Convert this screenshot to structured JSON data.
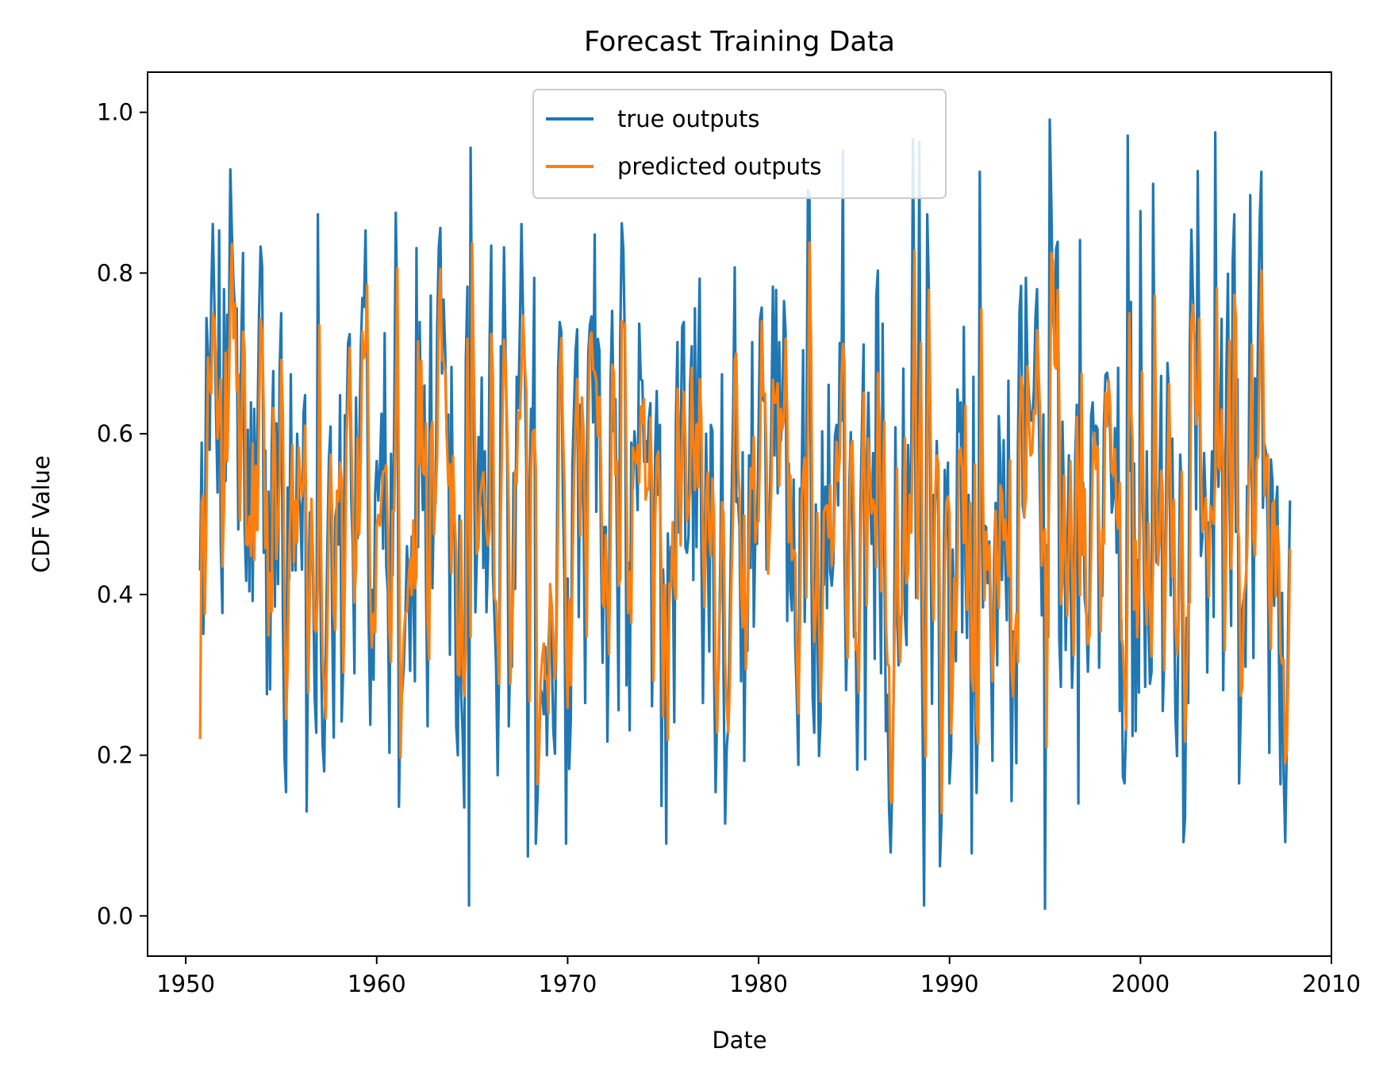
{
  "chart_data": {
    "type": "line",
    "title": "Forecast Training Data",
    "xlabel": "Date",
    "ylabel": "CDF Value",
    "xlim": [
      1948,
      2010
    ],
    "ylim": [
      -0.05,
      1.05
    ],
    "xticks": [
      "1950",
      "1960",
      "1970",
      "1980",
      "1990",
      "2000",
      "2010"
    ],
    "yticks": [
      "0.0",
      "0.2",
      "0.4",
      "0.6",
      "0.8",
      "1.0"
    ],
    "grid": false,
    "legend_position": "upper center",
    "series": [
      {
        "name": "true outputs",
        "color": "#1f77b4",
        "x_start": 1950.75,
        "x_step": 0.08333,
        "values_note": "monthly values",
        "values": []
      },
      {
        "name": "predicted outputs",
        "color": "#ff7f0e",
        "x_start": 1950.75,
        "x_step": 0.08333,
        "values": []
      }
    ]
  }
}
